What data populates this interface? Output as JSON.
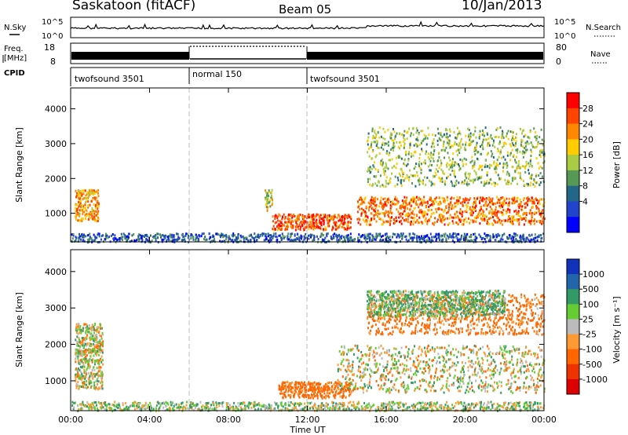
{
  "header": {
    "station": "Saskatoon (fitACF)",
    "beam": "Beam 05",
    "date": "10/Jan/2013"
  },
  "strips": {
    "nsky_label": "N.Sky",
    "nsearch_label": "N.Search",
    "nsky_ticks": [
      "10^5",
      "10^0"
    ],
    "nsearch_ticks": [
      "10^5",
      "10^0"
    ],
    "freq_label_1": "Freq.",
    "freq_label_2": "[MHz]",
    "freq_ticks": [
      "18",
      "8"
    ],
    "nave_label": "Nave",
    "nave_ticks": [
      "80",
      "0"
    ],
    "cpid_label": "CPID",
    "cpid_segments": [
      {
        "label": "twofsound 3501",
        "start_h": 0,
        "end_h": 6
      },
      {
        "label": "normal 150",
        "start_h": 6,
        "end_h": 12
      },
      {
        "label": "twofsound 3501",
        "start_h": 12,
        "end_h": 24
      }
    ]
  },
  "power_panel": {
    "ylabel": "Slant Range [km]",
    "yticks": [
      "4000",
      "3000",
      "2000",
      "1000"
    ],
    "colorbar_label": "Power [dB]",
    "colorbar_ticks": [
      "28",
      "24",
      "20",
      "16",
      "12",
      "8",
      "4"
    ],
    "colorbar_colors": [
      "#ff0000",
      "#ff4400",
      "#ff8800",
      "#ffcc00",
      "#aacc44",
      "#559955",
      "#226688",
      "#2244cc",
      "#0000ff"
    ]
  },
  "velocity_panel": {
    "ylabel": "Slant Range [km]",
    "yticks": [
      "4000",
      "3000",
      "2000",
      "1000"
    ],
    "colorbar_label": "Velocity [m s⁻¹]",
    "colorbar_ticks": [
      "1000",
      "500",
      "100",
      "25",
      "-25",
      "-100",
      "-500",
      "-1000"
    ],
    "colorbar_colors": [
      "#1133bb",
      "#2266aa",
      "#339966",
      "#66cc33",
      "#bbbbbb",
      "#ff9933",
      "#ff6600",
      "#ee3300",
      "#dd0000"
    ]
  },
  "xaxis": {
    "label": "Time UT",
    "ticks": [
      "00:00",
      "04:00",
      "08:00",
      "12:00",
      "16:00",
      "20:00",
      "00:00"
    ]
  },
  "chart_data": [
    {
      "type": "heatmap",
      "title": "Saskatoon (fitACF) Beam 05 10/Jan/2013",
      "xlabel": "Time UT",
      "ylabel": "Slant Range [km]",
      "xlim_hours": [
        0,
        24
      ],
      "ylim": [
        180,
        4600
      ],
      "colorbar": "Power [dB]",
      "clim": [
        0,
        30
      ],
      "regions": [
        {
          "x_hours": [
            0.2,
            1.4
          ],
          "range_km": [
            800,
            1700
          ],
          "power_db": 22
        },
        {
          "x_hours": [
            9.8,
            10.2
          ],
          "range_km": [
            1100,
            1700
          ],
          "power_db": 16
        },
        {
          "x_hours": [
            10.2,
            14.2
          ],
          "range_km": [
            550,
            1000
          ],
          "power_db": 26
        },
        {
          "x_hours": [
            14.5,
            24
          ],
          "range_km": [
            700,
            1500
          ],
          "power_db": 24
        },
        {
          "x_hours": [
            15,
            24
          ],
          "range_km": [
            1800,
            3500
          ],
          "power_db": 14
        },
        {
          "x_hours": [
            0,
            24
          ],
          "range_km": [
            200,
            450
          ],
          "power_db": 6
        }
      ]
    },
    {
      "type": "heatmap",
      "title": "Saskatoon (fitACF) Beam 05 10/Jan/2013",
      "xlabel": "Time UT",
      "ylabel": "Slant Range [km]",
      "xlim_hours": [
        0,
        24
      ],
      "ylim": [
        180,
        4600
      ],
      "colorbar": "Velocity [m s-1]",
      "clim": [
        -1000,
        1000
      ],
      "regions": [
        {
          "x_hours": [
            0.2,
            1.6
          ],
          "range_km": [
            800,
            2600
          ],
          "velocity_ms": 0
        },
        {
          "x_hours": [
            10.5,
            14.2
          ],
          "range_km": [
            550,
            1000
          ],
          "velocity_ms": -200
        },
        {
          "x_hours": [
            13.5,
            24
          ],
          "range_km": [
            700,
            2000
          ],
          "velocity_ms": 0
        },
        {
          "x_hours": [
            15,
            24
          ],
          "range_km": [
            2300,
            3400
          ],
          "velocity_ms": -150
        },
        {
          "x_hours": [
            15,
            22
          ],
          "range_km": [
            2800,
            3500
          ],
          "velocity_ms": 100
        },
        {
          "x_hours": [
            0,
            24
          ],
          "range_km": [
            200,
            450
          ],
          "velocity_ms": 50
        }
      ]
    }
  ]
}
